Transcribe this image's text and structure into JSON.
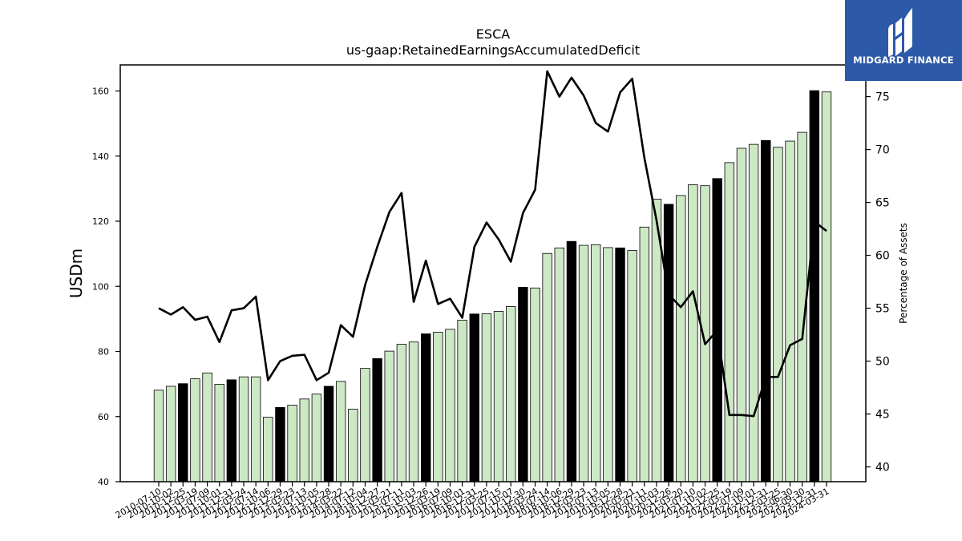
{
  "logo": {
    "text": "MIDGARD FINANCE",
    "color": "#2c5aa8"
  },
  "chart_data": {
    "type": "bar",
    "title": "ESCA",
    "subtitle": "us-gaap:RetainedEarningsAccumulatedDeficit",
    "ylabel": "USDm",
    "y2label": "Percentage of Assets",
    "ylim": [
      40,
      168
    ],
    "y2lim": [
      38.6,
      78.0
    ],
    "yticks": [
      40,
      60,
      80,
      100,
      120,
      140,
      160
    ],
    "y2ticks": [
      40,
      45,
      50,
      55,
      60,
      65,
      70,
      75
    ],
    "colors": {
      "bar_default": "#cde8c5",
      "bar_highlight": "#000000",
      "line": "#000000"
    },
    "categories": [
      "2010-07-10",
      "2010-10-02",
      "2010-12-25",
      "2011-03-19",
      "2011-07-09",
      "2011-10-01",
      "2011-12-31",
      "2012-03-24",
      "2012-07-14",
      "2012-10-06",
      "2012-12-29",
      "2013-03-23",
      "2013-07-13",
      "2013-10-05",
      "2013-12-28",
      "2014-03-22",
      "2014-07-12",
      "2014-10-04",
      "2014-12-27",
      "2015-03-21",
      "2015-07-11",
      "2015-10-03",
      "2015-12-26",
      "2016-03-19",
      "2016-07-09",
      "2016-10-01",
      "2016-12-31",
      "2017-03-25",
      "2017-07-15",
      "2017-10-07",
      "2017-12-30",
      "2018-03-24",
      "2018-07-14",
      "2018-10-06",
      "2018-12-29",
      "2019-03-23",
      "2019-07-13",
      "2019-10-05",
      "2019-12-28",
      "2020-03-21",
      "2020-07-11",
      "2020-10-03",
      "2020-12-26",
      "2021-03-20",
      "2021-07-10",
      "2021-10-02",
      "2021-12-25",
      "2022-03-19",
      "2022-07-09",
      "2022-10-01",
      "2022-12-31",
      "2023-03-25",
      "2023-06-30",
      "2023-09-30",
      "2023-12-31",
      "2024-03-31"
    ],
    "series": [
      {
        "type": "bar",
        "values": [
          68.1,
          69.3,
          70.1,
          71.6,
          73.4,
          69.9,
          71.3,
          72.2,
          72.2,
          59.8,
          62.8,
          63.5,
          65.4,
          66.9,
          69.3,
          70.8,
          62.3,
          74.8,
          77.8,
          80.1,
          82.2,
          82.9,
          85.4,
          85.9,
          86.8,
          89.6,
          91.5,
          91.6,
          92.3,
          93.8,
          99.7,
          99.5,
          110.1,
          111.8,
          113.8,
          112.6,
          112.8,
          111.9,
          111.8,
          111.0,
          118.2,
          126.8,
          125.2,
          127.9,
          131.2,
          130.9,
          133.1,
          138.0,
          142.4,
          143.6,
          144.8,
          142.7,
          144.6,
          147.3,
          160.1,
          159.7
        ],
        "highlight": [
          false,
          false,
          true,
          false,
          false,
          false,
          true,
          false,
          false,
          false,
          true,
          false,
          false,
          false,
          true,
          false,
          false,
          false,
          true,
          false,
          false,
          false,
          true,
          false,
          false,
          false,
          true,
          false,
          false,
          false,
          true,
          false,
          false,
          false,
          true,
          false,
          false,
          false,
          true,
          false,
          false,
          false,
          true,
          false,
          false,
          false,
          true,
          false,
          false,
          false,
          true,
          false,
          false,
          false,
          true,
          false
        ]
      },
      {
        "type": "line",
        "axis": "right",
        "values": [
          55.0,
          54.4,
          55.1,
          53.9,
          54.2,
          51.8,
          54.8,
          55.0,
          56.1,
          48.2,
          50.0,
          50.5,
          50.6,
          48.2,
          48.9,
          53.4,
          52.3,
          57.2,
          60.8,
          64.1,
          65.9,
          55.6,
          59.5,
          55.4,
          55.9,
          54.1,
          60.8,
          63.1,
          61.5,
          59.4,
          64.0,
          66.2,
          77.4,
          75.0,
          76.8,
          75.1,
          72.5,
          71.7,
          75.4,
          76.7,
          69.2,
          63.3,
          56.3,
          55.1,
          56.6,
          51.6,
          52.9,
          44.9,
          44.9,
          44.8,
          48.5,
          48.5,
          51.5,
          52.1,
          63.2,
          62.3
        ]
      }
    ]
  }
}
